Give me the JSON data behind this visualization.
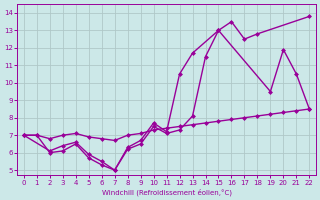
{
  "xlabel": "Windchill (Refroidissement éolien,°C)",
  "bg_color": "#cce8e8",
  "line_color": "#990099",
  "grid_color": "#b0c8c8",
  "xlim": [
    -0.5,
    22.5
  ],
  "ylim": [
    4.7,
    14.5
  ],
  "xticks": [
    0,
    1,
    2,
    3,
    4,
    5,
    6,
    7,
    8,
    9,
    10,
    11,
    12,
    13,
    14,
    15,
    16,
    17,
    18,
    19,
    20,
    21,
    22
  ],
  "yticks": [
    5,
    6,
    7,
    8,
    9,
    10,
    11,
    12,
    13,
    14
  ],
  "line1_x": [
    0,
    1,
    2,
    3,
    4,
    5,
    6,
    7,
    8,
    9,
    10,
    11,
    12,
    13,
    14,
    15,
    16,
    17,
    18,
    22
  ],
  "line1_y": [
    7.0,
    7.0,
    6.0,
    6.1,
    6.5,
    5.7,
    5.3,
    5.0,
    6.2,
    6.5,
    7.5,
    7.1,
    7.3,
    8.1,
    11.5,
    13.0,
    13.5,
    12.5,
    12.8,
    13.8
  ],
  "line2_x": [
    0,
    2,
    3,
    4,
    5,
    6,
    7,
    8,
    9,
    10,
    11,
    12,
    13,
    15,
    19,
    20,
    21,
    22
  ],
  "line2_y": [
    7.0,
    6.1,
    6.4,
    6.6,
    5.9,
    5.5,
    5.0,
    6.3,
    6.7,
    7.7,
    7.2,
    10.5,
    11.7,
    13.0,
    9.5,
    11.9,
    10.5,
    8.5
  ],
  "line3_x": [
    0,
    1,
    2,
    3,
    4,
    5,
    6,
    7,
    8,
    9,
    10,
    11,
    12,
    13,
    14,
    15,
    16,
    17,
    18,
    19,
    20,
    21,
    22
  ],
  "line3_y": [
    7.0,
    7.0,
    6.8,
    7.0,
    7.1,
    6.9,
    6.8,
    6.7,
    7.0,
    7.1,
    7.3,
    7.4,
    7.5,
    7.6,
    7.7,
    7.8,
    7.9,
    8.0,
    8.1,
    8.2,
    8.3,
    8.4,
    8.5
  ],
  "marker": "D",
  "markersize": 2.5,
  "linewidth": 1.0
}
